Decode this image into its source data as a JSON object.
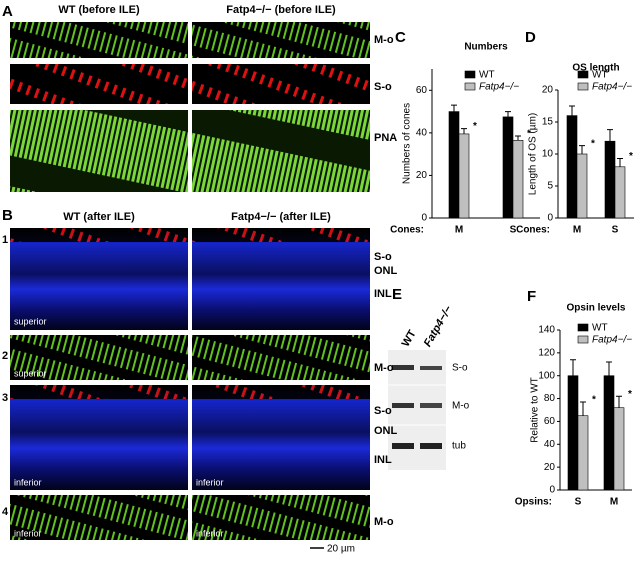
{
  "figure": {
    "panel_letters": [
      "A",
      "B",
      "C",
      "D",
      "E",
      "F"
    ],
    "a_headers": [
      "WT (before ILE)",
      "Fatp4−/− (before ILE)"
    ],
    "a_row_labels": [
      "M-o",
      "S-o",
      "PNA"
    ],
    "b_headers": [
      "WT (after ILE)",
      "Fatp4−/− (after ILE)"
    ],
    "b_row_numbers": [
      "1",
      "2",
      "3",
      "4"
    ],
    "b_row1_labels": [
      "S-o",
      "ONL",
      "INL"
    ],
    "b_row2_label": "M-o",
    "b_row3_labels": [
      "S-o",
      "ONL",
      "INL"
    ],
    "b_row4_label": "M-o",
    "region_superior": "superior",
    "region_inferior": "inferior",
    "scale_bar": "20 µm",
    "e_columns": [
      "WT",
      "Fatp4−/−"
    ],
    "e_bands": [
      "S-o",
      "M-o",
      "tub"
    ]
  },
  "chart_data": [
    {
      "type": "bar",
      "title": "Numbers",
      "ylabel": "Numbers of cones",
      "xlabel": "Cones:",
      "categories": [
        "M",
        "S"
      ],
      "ylim": [
        0,
        70
      ],
      "yticks": [
        0,
        20,
        40,
        60
      ],
      "series": [
        {
          "name": "WT",
          "color": "#000000",
          "values": [
            50,
            47.5
          ],
          "errors": [
            3,
            2.5
          ]
        },
        {
          "name": "Fatp4−/−",
          "color": "#bfbfbf",
          "values": [
            39.5,
            36.5
          ],
          "errors": [
            2.5,
            2
          ]
        }
      ],
      "annotations": [
        "*",
        "*"
      ]
    },
    {
      "type": "bar",
      "title": "OS length",
      "ylabel": "Length of OS (µm)",
      "xlabel": "Cones:",
      "categories": [
        "M",
        "S"
      ],
      "ylim": [
        0,
        20
      ],
      "yticks": [
        0,
        5,
        10,
        15,
        20
      ],
      "series": [
        {
          "name": "WT",
          "color": "#000000",
          "values": [
            16,
            12
          ],
          "errors": [
            1.5,
            1.8
          ]
        },
        {
          "name": "Fatp4−/−",
          "color": "#bfbfbf",
          "values": [
            10,
            8
          ],
          "errors": [
            1.3,
            1.3
          ]
        }
      ],
      "annotations": [
        "*",
        "*"
      ]
    },
    {
      "type": "bar",
      "title": "Opsin levels",
      "ylabel": "Relative to WT",
      "xlabel": "Opsins:",
      "categories": [
        "S",
        "M"
      ],
      "ylim": [
        0,
        140
      ],
      "yticks": [
        0,
        20,
        40,
        60,
        80,
        100,
        120,
        140
      ],
      "series": [
        {
          "name": "WT",
          "color": "#000000",
          "values": [
            100,
            100
          ],
          "errors": [
            14,
            12
          ]
        },
        {
          "name": "Fatp4−/−",
          "color": "#bfbfbf",
          "values": [
            65,
            72
          ],
          "errors": [
            12,
            10
          ]
        }
      ],
      "annotations": [
        "*",
        "*"
      ]
    }
  ]
}
